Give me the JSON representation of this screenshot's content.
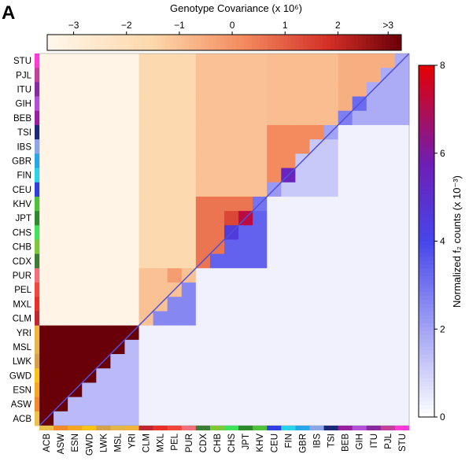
{
  "panel_label": "A",
  "chart_data": {
    "type": "heatmap",
    "populations": [
      "ACB",
      "ASW",
      "ESN",
      "GWD",
      "LWK",
      "MSL",
      "YRI",
      "CLM",
      "MXL",
      "PEL",
      "PUR",
      "CDX",
      "CHB",
      "CHS",
      "JPT",
      "KHV",
      "CEU",
      "FIN",
      "GBR",
      "IBS",
      "TSI",
      "BEB",
      "GIH",
      "ITU",
      "PJL",
      "STU"
    ],
    "population_colors": [
      "#e8c24a",
      "#f08a2c",
      "#f5a623",
      "#f7c31a",
      "#d4a24a",
      "#e3b64c",
      "#f0b33b",
      "#bf2630",
      "#e83028",
      "#f0463c",
      "#f3707a",
      "#3c7d35",
      "#7ec63a",
      "#3fe25a",
      "#2f8a2f",
      "#4fc23a",
      "#2f3fe0",
      "#2bd3e8",
      "#25a7ea",
      "#8aa6e8",
      "#1a2a7a",
      "#9a1ea0",
      "#b44fd8",
      "#8a2aa0",
      "#c2409a",
      "#ff3ad6"
    ],
    "block_groups": [
      {
        "populations": [
          "ACB",
          "ASW",
          "ESN",
          "GWD",
          "LWK",
          "MSL",
          "YRI"
        ],
        "size": 7
      },
      {
        "populations": [
          "CLM",
          "MXL",
          "PEL",
          "PUR"
        ],
        "size": 4
      },
      {
        "populations": [
          "CDX",
          "CHB",
          "CHS",
          "JPT",
          "KHV"
        ],
        "size": 5
      },
      {
        "populations": [
          "CEU",
          "FIN",
          "GBR",
          "IBS",
          "TSI"
        ],
        "size": 5
      },
      {
        "populations": [
          "BEB",
          "GIH",
          "ITU",
          "PJL",
          "STU"
        ],
        "size": 5
      }
    ],
    "upper_triangle": {
      "title": "Genotype Covariance (x 10⁶)",
      "colorbar_ticks": [
        "−3",
        "−2",
        "−1",
        "0",
        "1",
        "2",
        ">3"
      ],
      "range": [
        -3.5,
        3.2
      ],
      "within_group_values": [
        3.2,
        -1.0,
        0.6,
        0.2,
        -0.6
      ],
      "between_group_values": [
        [
          -3.3,
          -3.3,
          -3.3,
          -3.3
        ],
        [
          -1.6,
          -1.6,
          -1.6
        ],
        [
          -1.0,
          -1.0
        ],
        [
          -0.9
        ]
      ],
      "within_subgroup_boost": [
        [
          0,
          0
        ],
        [
          2,
          3
        ],
        [
          3,
          4
        ],
        [
          6,
          6
        ],
        [
          9,
          10
        ],
        [
          13,
          14
        ],
        [
          18,
          18
        ]
      ]
    },
    "lower_triangle": {
      "title": "Normalized f₂ counts (x 10⁻³)",
      "colorbar_ticks": [
        "0",
        "2",
        "4",
        "6",
        "8"
      ],
      "range": [
        0,
        8
      ],
      "within_group_values": [
        1.5,
        2.6,
        3.4,
        1.2,
        1.8
      ],
      "subgroup_peaks": [
        [
          0,
          2.8
        ],
        [
          1,
          2.5
        ],
        [
          7,
          3.5
        ],
        [
          8,
          7.8
        ],
        [
          9,
          6.8
        ],
        [
          11,
          3.5
        ],
        [
          12,
          4.2
        ],
        [
          13,
          4.5
        ],
        [
          14,
          7.2
        ],
        [
          15,
          3.0
        ],
        [
          16,
          2.2
        ],
        [
          17,
          5.5
        ],
        [
          20,
          2.0
        ],
        [
          21,
          2.8
        ],
        [
          22,
          3.2
        ]
      ],
      "background_value": 0.3
    }
  }
}
